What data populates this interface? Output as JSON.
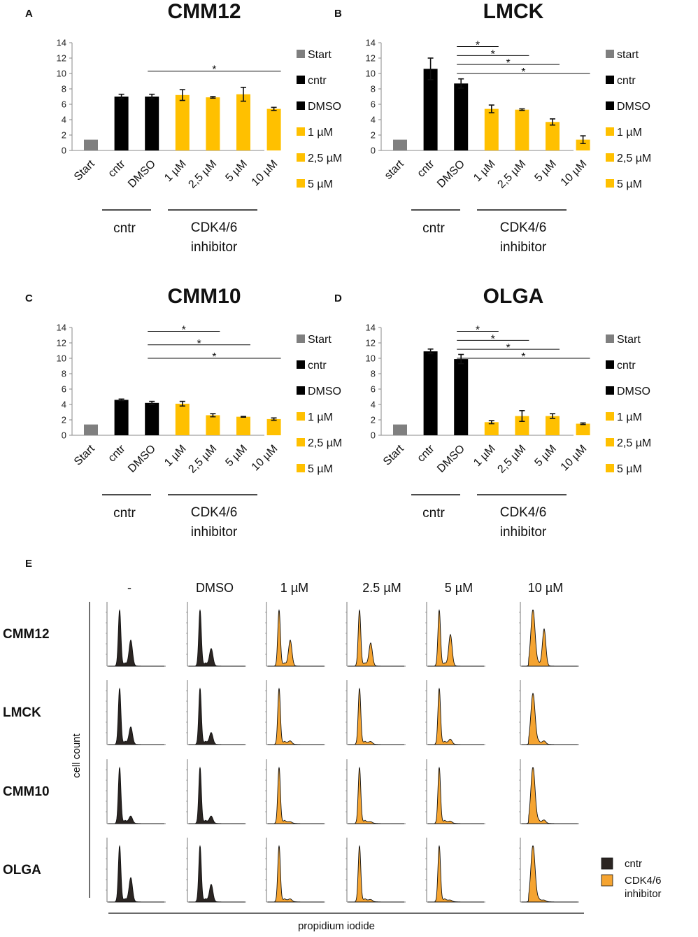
{
  "colors": {
    "start": "#7f7f7f",
    "control": "#000000",
    "inhibitor": "#ffc000",
    "histogram_control": "#2b2522",
    "histogram_inhibitor": "#f5a431"
  },
  "chart_data": [
    {
      "panel": "A",
      "type": "bar",
      "title": "CMM12",
      "categories": [
        "Start",
        "cntr",
        "DMSO",
        "1 µM",
        "2,5 µM",
        "5 µM",
        "10 µM"
      ],
      "values": [
        1.4,
        7.0,
        7.0,
        7.2,
        6.9,
        7.3,
        5.4
      ],
      "errors": [
        0,
        0.3,
        0.3,
        0.7,
        0.1,
        0.9,
        0.2
      ],
      "bar_colors": [
        "start",
        "control",
        "control",
        "inhibitor",
        "inhibitor",
        "inhibitor",
        "inhibitor"
      ],
      "ylim": [
        0,
        14
      ],
      "yticks": [
        "0",
        "2",
        "4",
        "6",
        "8",
        "10",
        "12",
        "14"
      ],
      "groups": [
        {
          "label": "cntr"
        },
        {
          "label_line1": "CDK4/6",
          "label_line2": "inhibitor"
        }
      ],
      "significance": [
        {
          "from": "DMSO",
          "to": "10 µM",
          "mark": "*"
        }
      ],
      "legend": [
        "Start",
        "cntr",
        "DMSO",
        "1 µM",
        "2,5 µM",
        "5 µM"
      ]
    },
    {
      "panel": "B",
      "type": "bar",
      "title": "LMCK",
      "categories": [
        "start",
        "cntr",
        "DMSO",
        "1 µM",
        "2,5 µM",
        "5 µM",
        "10 µM"
      ],
      "values": [
        1.4,
        10.6,
        8.7,
        5.4,
        5.3,
        3.7,
        1.4
      ],
      "errors": [
        0,
        1.4,
        0.6,
        0.5,
        0.1,
        0.4,
        0.5
      ],
      "bar_colors": [
        "start",
        "control",
        "control",
        "inhibitor",
        "inhibitor",
        "inhibitor",
        "inhibitor"
      ],
      "ylim": [
        0,
        14
      ],
      "yticks": [
        "0",
        "2",
        "4",
        "6",
        "8",
        "10",
        "12",
        "14"
      ],
      "groups": [
        {
          "label": "cntr"
        },
        {
          "label_line1": "CDK4/6",
          "label_line2": "inhibitor"
        }
      ],
      "significance": [
        {
          "from": "DMSO",
          "to": "1 µM",
          "mark": "*"
        },
        {
          "from": "DMSO",
          "to": "2,5 µM",
          "mark": "*"
        },
        {
          "from": "DMSO",
          "to": "5 µM",
          "mark": "*"
        },
        {
          "from": "DMSO",
          "to": "10 µM",
          "mark": "*"
        }
      ],
      "legend": [
        "start",
        "cntr",
        "DMSO",
        "1 µM",
        "2,5 µM",
        "5 µM"
      ]
    },
    {
      "panel": "C",
      "type": "bar",
      "title": "CMM10",
      "categories": [
        "Start",
        "cntr",
        "DMSO",
        "1 µM",
        "2,5 µM",
        "5 µM",
        "10 µM"
      ],
      "values": [
        1.4,
        4.6,
        4.2,
        4.1,
        2.6,
        2.4,
        2.1
      ],
      "errors": [
        0,
        0.1,
        0.2,
        0.3,
        0.2,
        0.05,
        0.15
      ],
      "bar_colors": [
        "start",
        "control",
        "control",
        "inhibitor",
        "inhibitor",
        "inhibitor",
        "inhibitor"
      ],
      "ylim": [
        0,
        14
      ],
      "yticks": [
        "0",
        "2",
        "4",
        "6",
        "8",
        "10",
        "12",
        "14"
      ],
      "groups": [
        {
          "label": "cntr"
        },
        {
          "label_line1": "CDK4/6",
          "label_line2": "inhibitor"
        }
      ],
      "significance": [
        {
          "from": "DMSO",
          "to": "2,5 µM",
          "mark": "*"
        },
        {
          "from": "DMSO",
          "to": "5 µM",
          "mark": "*"
        },
        {
          "from": "DMSO",
          "to": "10 µM",
          "mark": "*"
        }
      ],
      "legend": [
        "Start",
        "cntr",
        "DMSO",
        "1 µM",
        "2,5 µM",
        "5 µM"
      ]
    },
    {
      "panel": "D",
      "type": "bar",
      "title": "OLGA",
      "categories": [
        "Start",
        "cntr",
        "DMSO",
        "1 µM",
        "2,5 µM",
        "5 µM",
        "10 µM"
      ],
      "values": [
        1.4,
        10.9,
        9.9,
        1.7,
        2.5,
        2.5,
        1.5
      ],
      "errors": [
        0,
        0.3,
        0.6,
        0.2,
        0.7,
        0.3,
        0.1
      ],
      "bar_colors": [
        "start",
        "control",
        "control",
        "inhibitor",
        "inhibitor",
        "inhibitor",
        "inhibitor"
      ],
      "ylim": [
        0,
        14
      ],
      "yticks": [
        "0",
        "2",
        "4",
        "6",
        "8",
        "10",
        "12",
        "14"
      ],
      "groups": [
        {
          "label": "cntr"
        },
        {
          "label_line1": "CDK4/6",
          "label_line2": "inhibitor"
        }
      ],
      "significance": [
        {
          "from": "DMSO",
          "to": "1 µM",
          "mark": "*"
        },
        {
          "from": "DMSO",
          "to": "2,5 µM",
          "mark": "*"
        },
        {
          "from": "DMSO",
          "to": "5 µM",
          "mark": "*"
        },
        {
          "from": "DMSO",
          "to": "10 µM",
          "mark": "*"
        }
      ],
      "legend": [
        "Start",
        "cntr",
        "DMSO",
        "1 µM",
        "2,5 µM",
        "5 µM"
      ]
    },
    {
      "panel": "E",
      "type": "histogram_grid",
      "columns": [
        "-",
        "DMSO",
        "1 µM",
        "2.5 µM",
        "5 µM",
        "10 µM"
      ],
      "rows": [
        "CMM12",
        "LMCK",
        "CMM10",
        "OLGA"
      ],
      "xlabel": "propidium iodide",
      "ylabel": "cell count",
      "column_treatment": [
        "cntr",
        "cntr",
        "inhibitor",
        "inhibitor",
        "inhibitor",
        "inhibitor"
      ],
      "legend": [
        {
          "key": "control",
          "label": "cntr"
        },
        {
          "key": "inhibitor",
          "label_line1": "CDK4/6",
          "label_line2": "inhibitor"
        }
      ],
      "peak_profiles": [
        [
          {
            "g1": 1.0,
            "g2": 0.45
          },
          {
            "g1": 1.0,
            "g2": 0.3
          },
          {
            "g1": 1.0,
            "g2": 0.45
          },
          {
            "g1": 1.0,
            "g2": 0.4
          },
          {
            "g1": 1.0,
            "g2": 0.55
          },
          {
            "g1": 1.0,
            "g2": 0.65
          }
        ],
        [
          {
            "g1": 1.0,
            "g2": 0.3
          },
          {
            "g1": 1.0,
            "g2": 0.2
          },
          {
            "g1": 1.0,
            "g2": 0.05
          },
          {
            "g1": 1.0,
            "g2": 0.04
          },
          {
            "g1": 1.0,
            "g2": 0.08
          },
          {
            "g1": 0.9,
            "g2": 0.05
          }
        ],
        [
          {
            "g1": 1.0,
            "g2": 0.12
          },
          {
            "g1": 1.0,
            "g2": 0.12
          },
          {
            "g1": 1.0,
            "g2": 0.02
          },
          {
            "g1": 1.0,
            "g2": 0.02
          },
          {
            "g1": 1.0,
            "g2": 0.03
          },
          {
            "g1": 1.0,
            "g2": 0.05
          }
        ],
        [
          {
            "g1": 1.0,
            "g2": 0.42
          },
          {
            "g1": 1.0,
            "g2": 0.3
          },
          {
            "g1": 1.0,
            "g2": 0.04
          },
          {
            "g1": 1.0,
            "g2": 0.03
          },
          {
            "g1": 1.0,
            "g2": 0.02
          },
          {
            "g1": 1.0,
            "g2": 0.02
          }
        ]
      ]
    }
  ]
}
